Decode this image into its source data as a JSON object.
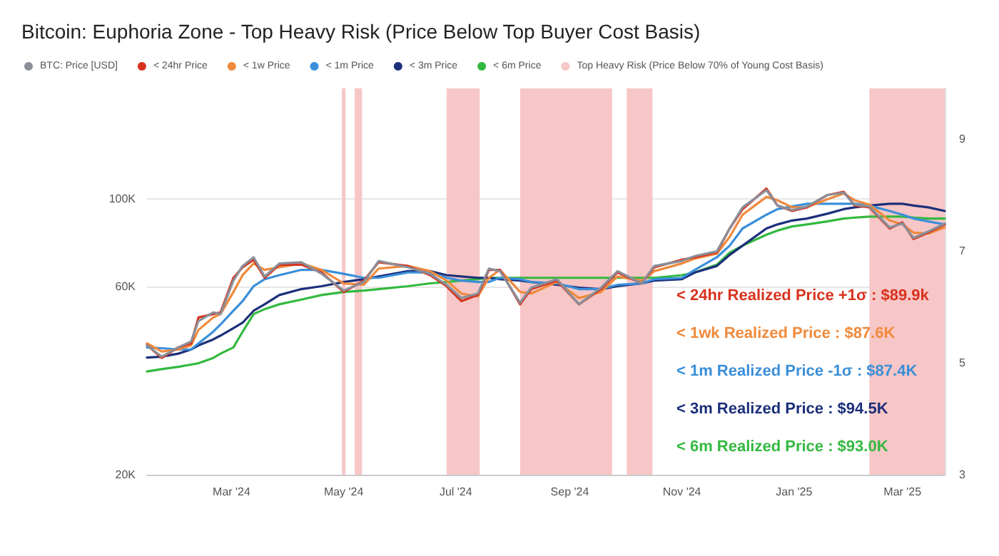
{
  "chart_data": {
    "type": "line",
    "title": "Bitcoin: Euphoria Zone - Top Heavy Risk (Price Below Top Buyer Cost Basis)",
    "log": "y",
    "grid": "y",
    "legend": "top",
    "marker": "none",
    "line_style": "solid",
    "xlim": [
      "2024-01-15",
      "2025-03-24"
    ],
    "xticks": [
      {
        "value": "2024-03-01",
        "label": "Mar '24"
      },
      {
        "value": "2024-05-01",
        "label": "May '24"
      },
      {
        "value": "2024-07-01",
        "label": "Jul '24"
      },
      {
        "value": "2024-09-01",
        "label": "Sep '24"
      },
      {
        "value": "2024-11-01",
        "label": "Nov '24"
      },
      {
        "value": "2025-01-01",
        "label": "Jan '25"
      },
      {
        "value": "2025-03-01",
        "label": "Mar '25"
      }
    ],
    "ylim": [
      20000,
      190000
    ],
    "yticks": [
      {
        "value": 20000,
        "label": "20K"
      },
      {
        "value": 60000,
        "label": "60K"
      },
      {
        "value": 100000,
        "label": "100K"
      }
    ],
    "y2lim": [
      3,
      9.9
    ],
    "y2ticks": [
      3,
      5,
      7,
      9
    ],
    "x": [
      "2024-01-15",
      "2024-01-23",
      "2024-02-01",
      "2024-02-08",
      "2024-02-12",
      "2024-02-20",
      "2024-02-24",
      "2024-03-02",
      "2024-03-07",
      "2024-03-13",
      "2024-03-19",
      "2024-03-27",
      "2024-04-08",
      "2024-04-19",
      "2024-05-01",
      "2024-05-12",
      "2024-05-20",
      "2024-06-05",
      "2024-06-17",
      "2024-06-26",
      "2024-07-04",
      "2024-07-13",
      "2024-07-19",
      "2024-07-25",
      "2024-08-05",
      "2024-08-11",
      "2024-08-25",
      "2024-09-06",
      "2024-09-18",
      "2024-09-27",
      "2024-10-10",
      "2024-10-17",
      "2024-11-01",
      "2024-11-08",
      "2024-11-20",
      "2024-11-27",
      "2024-12-04",
      "2024-12-17",
      "2024-12-23",
      "2024-12-31",
      "2025-01-08",
      "2025-01-19",
      "2025-01-28",
      "2025-02-03",
      "2025-02-11",
      "2025-02-22",
      "2025-03-01",
      "2025-03-07",
      "2025-03-15",
      "2025-03-24"
    ],
    "series": [
      {
        "name": "BTC: Price [USD]",
        "color": "#8a8f99",
        "values": [
          42500,
          39800,
          42000,
          43500,
          49000,
          51500,
          51000,
          62000,
          67500,
          71000,
          63500,
          68500,
          69000,
          64500,
          58500,
          61500,
          69500,
          67000,
          64500,
          60500,
          56000,
          57500,
          66500,
          65500,
          54500,
          59500,
          62500,
          54000,
          59500,
          65500,
          61000,
          67500,
          69500,
          71500,
          73500,
          84000,
          95000,
          105000,
          96000,
          93500,
          95500,
          102000,
          103500,
          96500,
          95500,
          84500,
          86500,
          79500,
          82500,
          86500
        ]
      },
      {
        "name": "< 24hr Price",
        "color": "#d8321e",
        "values": [
          42600,
          39500,
          42000,
          43000,
          50000,
          51000,
          51500,
          63000,
          67000,
          70000,
          63000,
          68000,
          68000,
          65000,
          58000,
          62000,
          69000,
          67500,
          64000,
          60000,
          55000,
          57000,
          66000,
          66000,
          54000,
          59000,
          62000,
          54000,
          59000,
          65000,
          61000,
          67000,
          70000,
          71000,
          73000,
          84000,
          94000,
          106000,
          96000,
          93000,
          95000,
          102000,
          104000,
          96000,
          95000,
          84000,
          87000,
          79000,
          82000,
          86000
        ]
      },
      {
        "name": "< 1w Price",
        "color": "#ef8a3c",
        "values": [
          43000,
          41000,
          41500,
          42500,
          46500,
          50000,
          51000,
          58000,
          64000,
          68500,
          66000,
          67000,
          68500,
          66000,
          61000,
          60500,
          66500,
          67500,
          65500,
          62000,
          57500,
          56500,
          63000,
          66000,
          58000,
          57500,
          61500,
          56000,
          58000,
          63500,
          62000,
          65500,
          68500,
          70500,
          72500,
          80000,
          91000,
          101000,
          99000,
          95000,
          95000,
          99500,
          103000,
          99000,
          96500,
          88000,
          86000,
          82000,
          81500,
          84500
        ]
      },
      {
        "name": "< 1m Price",
        "color": "#3a8fd9",
        "values": [
          42000,
          41800,
          41500,
          41500,
          43000,
          46000,
          48000,
          52000,
          55000,
          60000,
          62500,
          64000,
          66000,
          66000,
          64500,
          63000,
          63000,
          65000,
          65000,
          63000,
          62000,
          61500,
          61500,
          63000,
          62500,
          61500,
          61000,
          59000,
          59000,
          60500,
          61000,
          62500,
          63000,
          66000,
          71000,
          76000,
          84000,
          91000,
          94000,
          95500,
          97000,
          97000,
          97000,
          97000,
          96000,
          93000,
          91000,
          89000,
          87500,
          86000
        ]
      },
      {
        "name": "< 3m Price",
        "color": "#1c2f7a",
        "values": [
          39600,
          39800,
          40500,
          41500,
          42500,
          44000,
          45000,
          47000,
          48500,
          52000,
          54000,
          57000,
          59000,
          60000,
          61500,
          62500,
          63500,
          65500,
          65500,
          64000,
          63500,
          63000,
          63000,
          62500,
          62000,
          61500,
          60500,
          59500,
          59000,
          60000,
          61000,
          62000,
          62500,
          65000,
          67500,
          72000,
          76000,
          84000,
          86000,
          88000,
          89000,
          91500,
          94000,
          95000,
          96000,
          97000,
          97000,
          96000,
          95000,
          93000
        ]
      },
      {
        "name": "< 6m Price",
        "color": "#33b940",
        "values": [
          36500,
          37000,
          37500,
          38000,
          38300,
          39500,
          40500,
          42000,
          46000,
          51000,
          52500,
          54000,
          55500,
          57000,
          58000,
          58500,
          59000,
          60000,
          61000,
          61500,
          62000,
          62500,
          63000,
          63000,
          63000,
          63000,
          63000,
          63000,
          63000,
          63000,
          63000,
          63000,
          64000,
          65000,
          68000,
          73000,
          76000,
          81000,
          83000,
          85000,
          86000,
          87500,
          89000,
          89500,
          90000,
          90000,
          90000,
          89500,
          89000,
          89000
        ]
      }
    ],
    "bands": [
      {
        "axis": "x",
        "from": "2024-04-30",
        "to": "2024-05-02",
        "label": "Top Heavy Risk (Price Below 70% of Young Cost Basis)",
        "color": "#f7c6c6"
      },
      {
        "axis": "x",
        "from": "2024-05-07",
        "to": "2024-05-11",
        "color": "#f7c6c6"
      },
      {
        "axis": "x",
        "from": "2024-06-26",
        "to": "2024-07-14",
        "color": "#f7c6c6"
      },
      {
        "axis": "x",
        "from": "2024-08-05",
        "to": "2024-09-24",
        "color": "#f7c6c6"
      },
      {
        "axis": "x",
        "from": "2024-10-02",
        "to": "2024-10-16",
        "color": "#f7c6c6"
      },
      {
        "axis": "x",
        "from": "2025-02-11",
        "to": "2025-03-24",
        "color": "#f7c6c6"
      }
    ],
    "annotations": [
      "< 24hr Realized Price +1σ : $89.9k",
      "< 1wk Realized Price : $87.6K",
      "< 1m Realized Price -1σ : $87.4K",
      "< 3m Realized Price : $94.5K",
      "< 6m Realized Price : $93.0K"
    ]
  }
}
